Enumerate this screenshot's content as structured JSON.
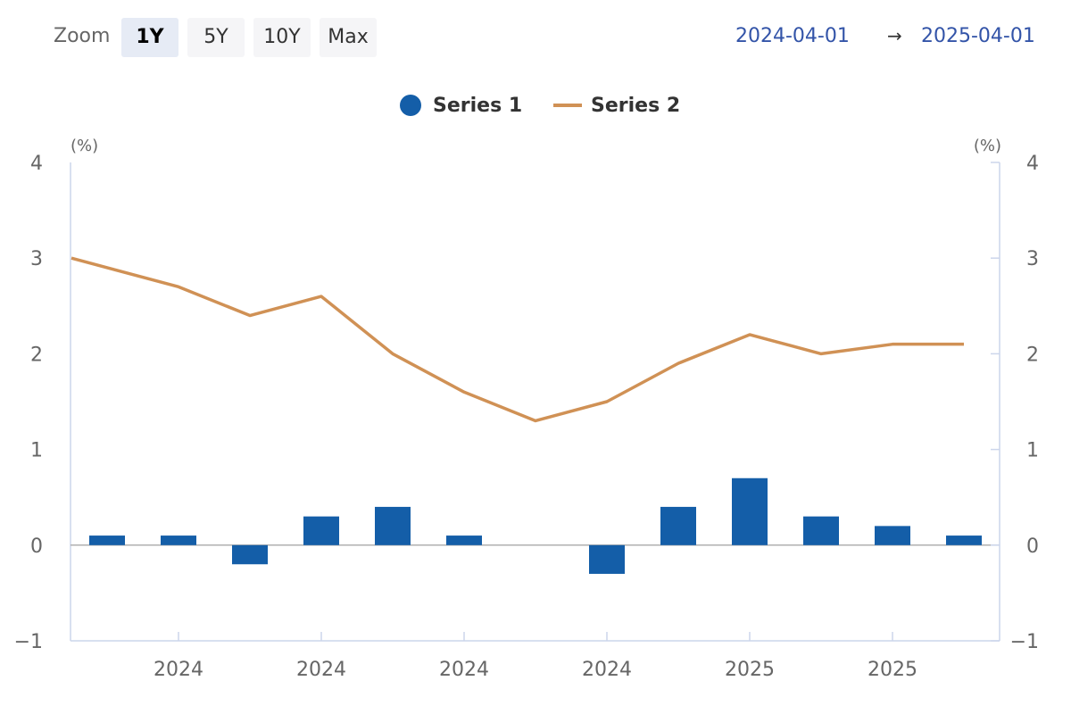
{
  "toolbar": {
    "zoom_label": "Zoom",
    "buttons": [
      {
        "label": "1Y",
        "active": true
      },
      {
        "label": "5Y",
        "active": false
      },
      {
        "label": "10Y",
        "active": false
      },
      {
        "label": "Max",
        "active": false
      }
    ],
    "range_start": "2024-04-01",
    "range_arrow": "→",
    "range_end": "2025-04-01"
  },
  "colors": {
    "series1": "#145ea8",
    "series2": "#d09155",
    "axis": "#ccd6eb",
    "zero_line": "#b0b0b0"
  },
  "chart_data": {
    "type": "bar",
    "title": "",
    "legend_position": "top-center",
    "grid": false,
    "x_tick_labels": [
      "2024",
      "2024",
      "2024",
      "2024",
      "2025",
      "2025"
    ],
    "left_axis": {
      "unit": "(%)",
      "ylim": [
        -1,
        4
      ],
      "ticks": [
        "−1",
        "0",
        "1",
        "2",
        "3",
        "4"
      ]
    },
    "right_axis": {
      "unit": "(%)",
      "ylim": [
        -1,
        4
      ],
      "ticks": [
        "−1",
        "0",
        "1",
        "2",
        "3",
        "4"
      ]
    },
    "series": [
      {
        "name": "Series 1",
        "type": "bar",
        "values": [
          0.1,
          0.1,
          -0.2,
          0.3,
          0.4,
          0.1,
          0.0,
          -0.3,
          0.4,
          0.7,
          0.3,
          0.2,
          0.1
        ]
      },
      {
        "name": "Series 2",
        "type": "line",
        "values": [
          3.0,
          2.7,
          2.4,
          2.6,
          2.0,
          1.6,
          1.3,
          1.5,
          1.9,
          2.2,
          2.0,
          2.1,
          2.1
        ]
      }
    ]
  }
}
